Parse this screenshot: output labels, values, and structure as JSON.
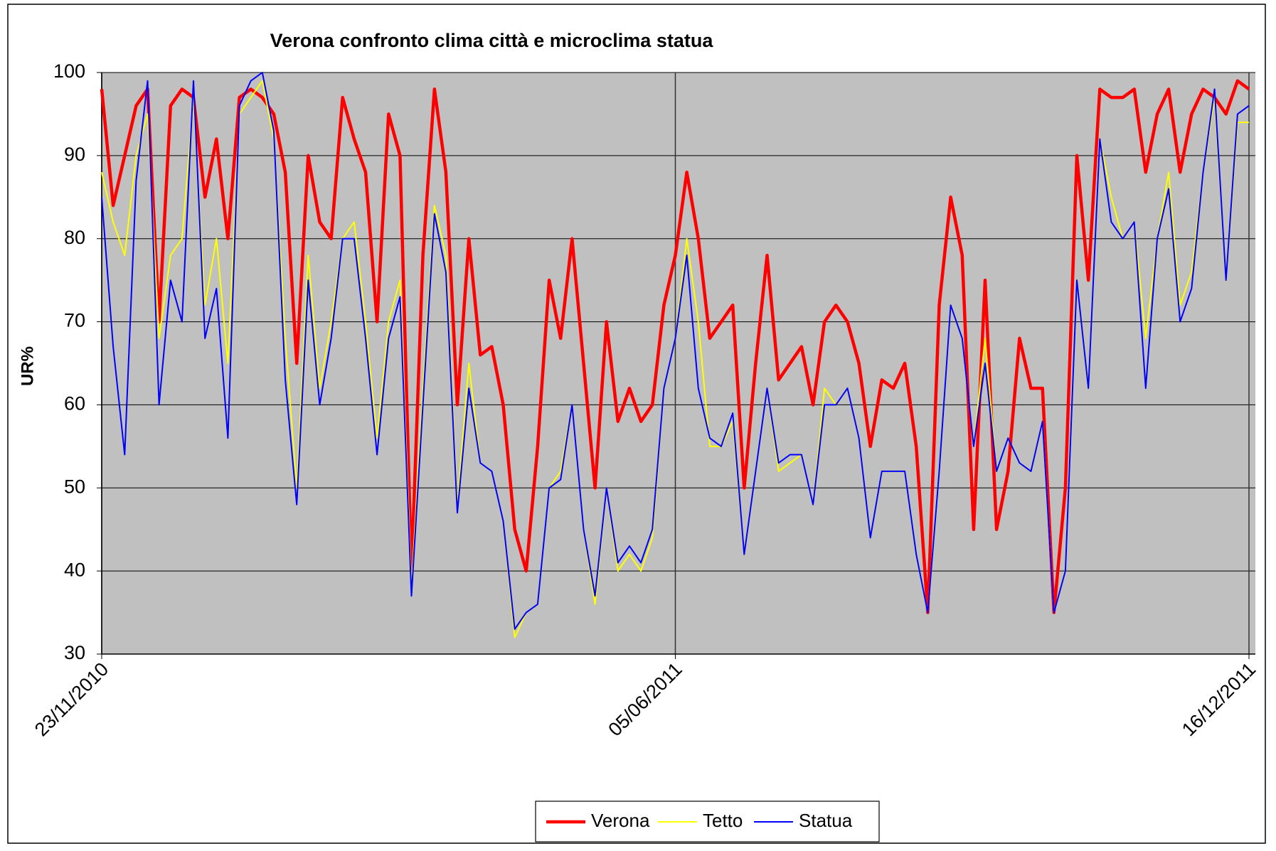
{
  "chart_data": {
    "type": "line",
    "title": "Verona confronto clima città e microclima statua",
    "y_label": "UR%",
    "categories": [
      "23/11/2010",
      null,
      null,
      null,
      null,
      null,
      null,
      null,
      null,
      null,
      null,
      null,
      null,
      null,
      null,
      null,
      null,
      null,
      null,
      null,
      null,
      null,
      null,
      null,
      null,
      null,
      null,
      null,
      null,
      null,
      null,
      null,
      null,
      null,
      null,
      null,
      null,
      null,
      null,
      null,
      null,
      null,
      null,
      null,
      null,
      null,
      null,
      null,
      null,
      null,
      "05/06/2011",
      null,
      null,
      null,
      null,
      null,
      null,
      null,
      null,
      null,
      null,
      null,
      null,
      null,
      null,
      null,
      null,
      null,
      null,
      null,
      null,
      null,
      null,
      null,
      null,
      null,
      null,
      null,
      null,
      null,
      null,
      null,
      null,
      null,
      null,
      null,
      null,
      null,
      null,
      null,
      null,
      null,
      null,
      null,
      null,
      null,
      null,
      null,
      null,
      null,
      "16/12/2011"
    ],
    "series": [
      {
        "name": "Verona",
        "color": "#ff0000",
        "values": [
          98,
          84,
          90,
          96,
          98,
          70,
          96,
          98,
          97,
          85,
          92,
          80,
          97,
          98,
          97,
          95,
          88,
          65,
          90,
          82,
          80,
          97,
          92,
          88,
          70,
          95,
          90,
          40,
          78,
          98,
          88,
          60,
          80,
          66,
          67,
          60,
          45,
          40,
          55,
          75,
          68,
          80,
          65,
          50,
          70,
          58,
          62,
          58,
          60,
          72,
          78,
          88,
          80,
          68,
          70,
          72,
          50,
          65,
          78,
          63,
          65,
          67,
          60,
          70,
          72,
          70,
          65,
          55,
          63,
          62,
          65,
          55,
          35,
          72,
          85,
          78,
          45,
          75,
          45,
          52,
          68,
          62,
          62,
          35,
          50,
          90,
          75,
          98,
          97,
          97,
          98,
          88,
          95,
          98,
          88,
          95,
          98,
          97,
          95,
          99,
          98
        ]
      },
      {
        "name": "Tetto",
        "color": "#ffff00",
        "values": [
          88,
          82,
          78,
          90,
          95,
          68,
          78,
          80,
          97,
          72,
          80,
          65,
          95,
          97,
          99,
          92,
          68,
          50,
          78,
          62,
          70,
          80,
          82,
          70,
          56,
          70,
          75,
          38,
          62,
          84,
          78,
          48,
          65,
          53,
          52,
          46,
          32,
          35,
          36,
          50,
          52,
          60,
          45,
          36,
          50,
          40,
          42,
          40,
          44,
          62,
          68,
          80,
          70,
          55,
          55,
          58,
          42,
          52,
          62,
          52,
          53,
          54,
          48,
          62,
          60,
          62,
          56,
          44,
          52,
          52,
          52,
          42,
          35,
          52,
          72,
          68,
          55,
          68,
          52,
          56,
          53,
          52,
          58,
          35,
          40,
          75,
          62,
          92,
          85,
          80,
          82,
          68,
          80,
          88,
          72,
          76,
          88,
          97,
          75,
          94,
          94
        ]
      },
      {
        "name": "Statua",
        "color": "#0000ff",
        "values": [
          85,
          67,
          54,
          87,
          99,
          60,
          75,
          70,
          99,
          68,
          74,
          56,
          96,
          99,
          100,
          93,
          63,
          48,
          75,
          60,
          68,
          80,
          80,
          68,
          54,
          68,
          73,
          37,
          60,
          83,
          76,
          47,
          62,
          53,
          52,
          46,
          33,
          35,
          36,
          50,
          51,
          60,
          45,
          37,
          50,
          41,
          43,
          41,
          45,
          62,
          68,
          78,
          62,
          56,
          55,
          59,
          42,
          52,
          62,
          53,
          54,
          54,
          48,
          60,
          60,
          62,
          56,
          44,
          52,
          52,
          52,
          42,
          35,
          52,
          72,
          68,
          55,
          65,
          52,
          56,
          53,
          52,
          58,
          35,
          40,
          75,
          62,
          92,
          82,
          80,
          82,
          62,
          80,
          86,
          70,
          74,
          88,
          98,
          75,
          95,
          96
        ]
      }
    ],
    "ylim": [
      30,
      100
    ],
    "yticks": [
      30,
      40,
      50,
      60,
      70,
      80,
      90,
      100
    ],
    "grid": true,
    "legend": "bottom"
  }
}
